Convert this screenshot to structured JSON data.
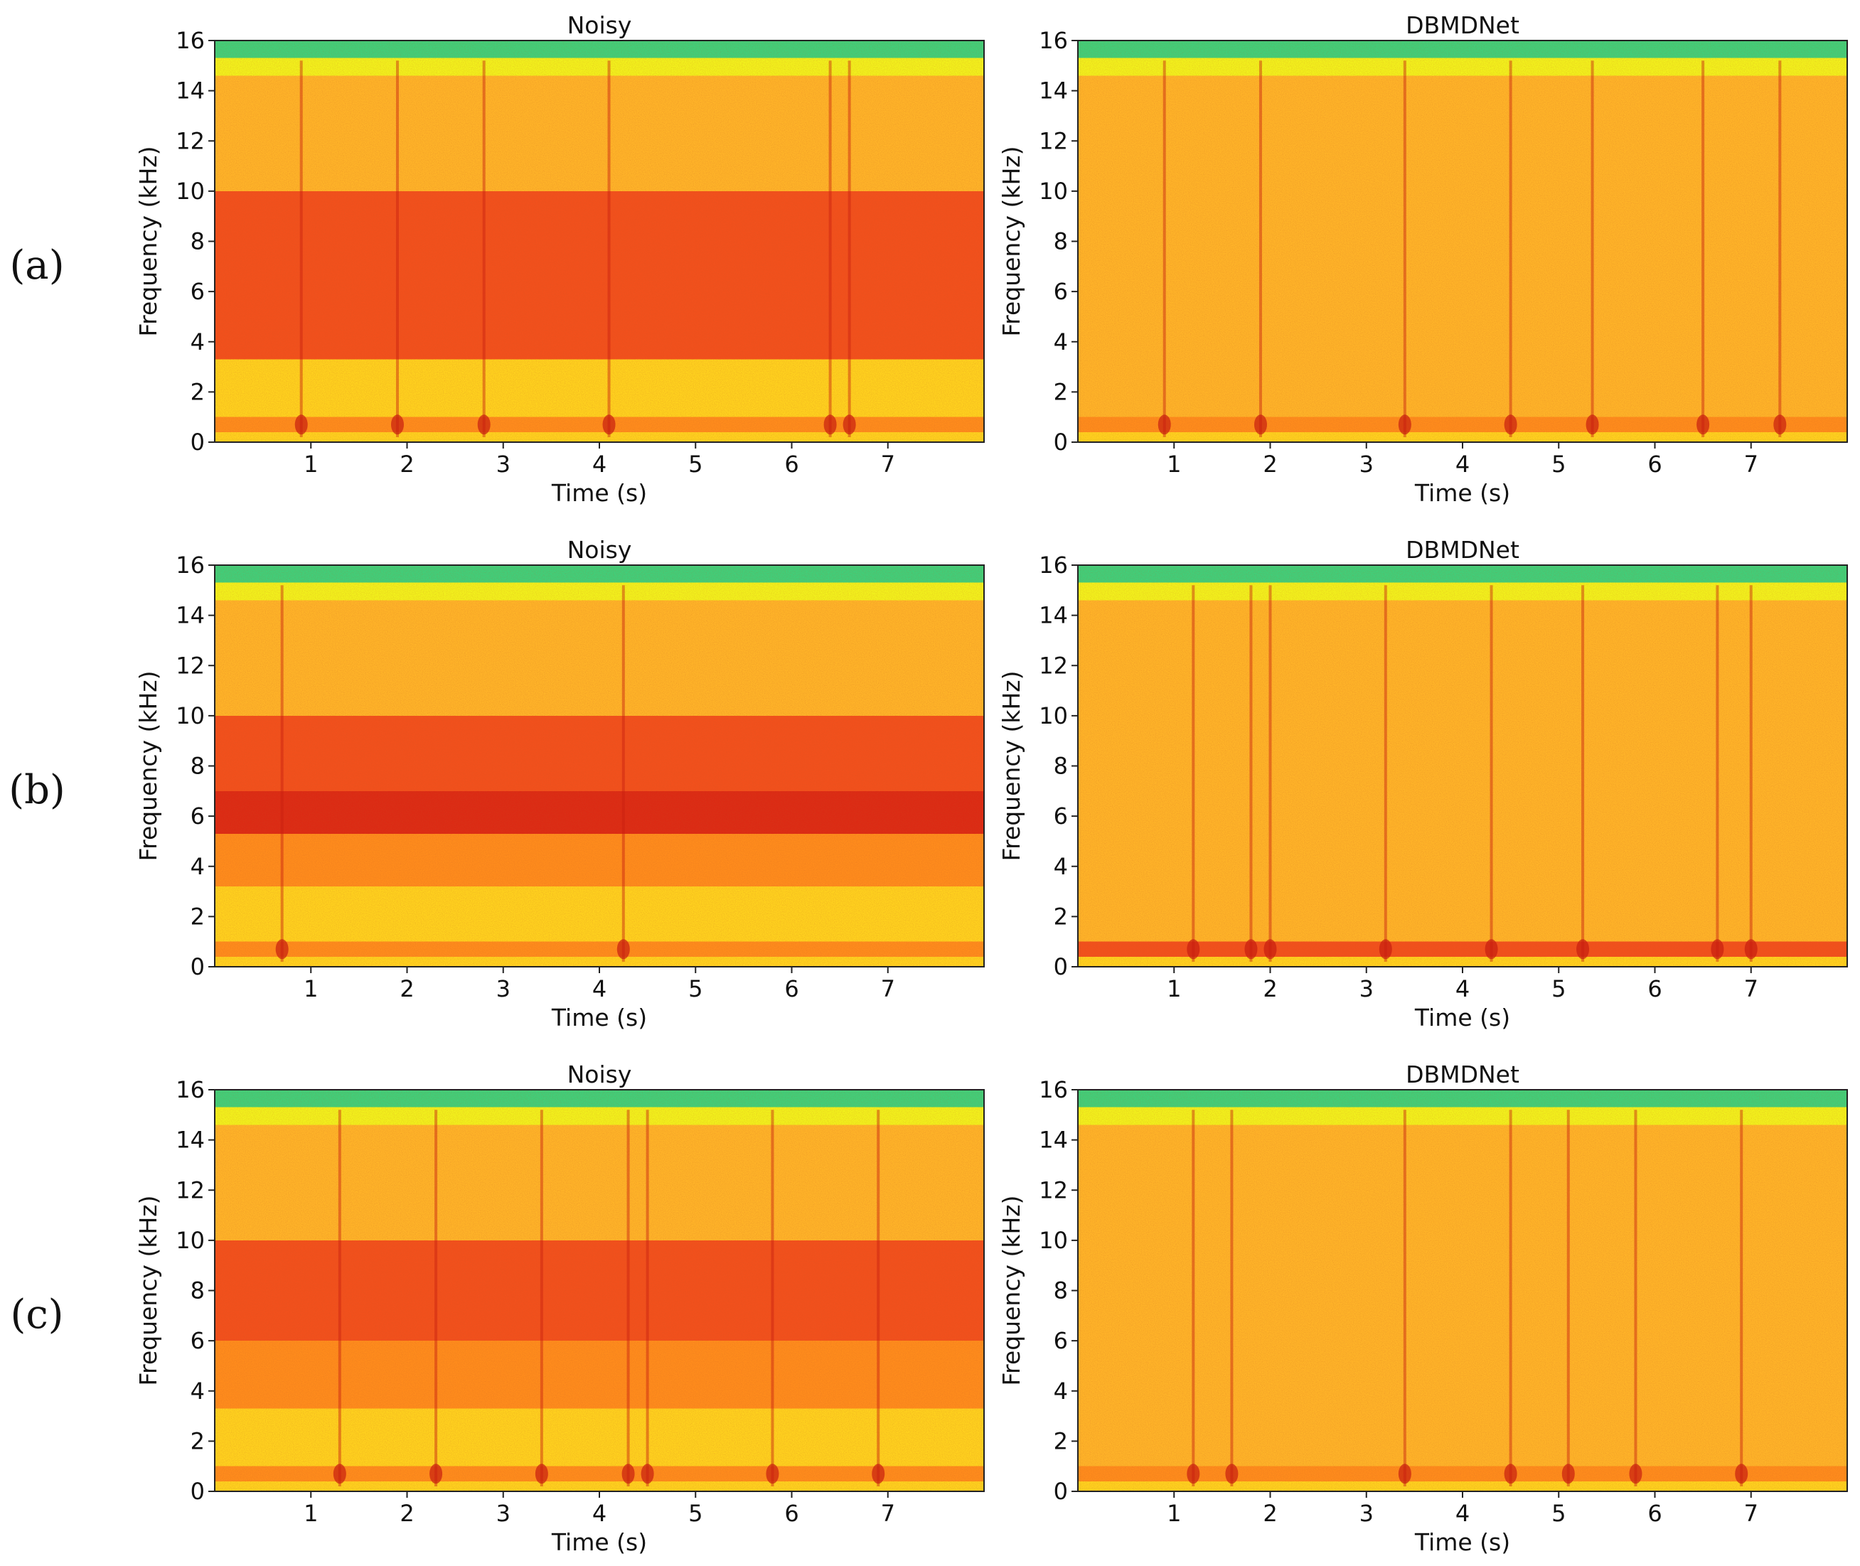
{
  "colors": {
    "colormap": [
      "#1fbfa0",
      "#3fd07a",
      "#b8e830",
      "#f2f21c",
      "#ffd21e",
      "#ffb428",
      "#ff8c1c",
      "#f2501c",
      "#dc2a14"
    ],
    "axis": "#222222"
  },
  "chart_data": [
    {
      "type": "heatmap",
      "row": "(a)",
      "title": "Noisy",
      "xlabel": "Time (s)",
      "ylabel": "Frequency (kHz)",
      "xlim": [
        0,
        8
      ],
      "ylim": [
        0,
        16
      ],
      "xticks": [
        1,
        2,
        3,
        4,
        5,
        6,
        7
      ],
      "yticks": [
        0,
        2,
        4,
        6,
        8,
        10,
        12,
        14,
        16
      ],
      "energy_bands": [
        {
          "from_khz": 0,
          "to_khz": 0.4,
          "level": 0.45
        },
        {
          "from_khz": 0.4,
          "to_khz": 1.0,
          "level": 0.8
        },
        {
          "from_khz": 1.0,
          "to_khz": 3.3,
          "level": 0.45
        },
        {
          "from_khz": 3.3,
          "to_khz": 10.0,
          "level": 0.9
        },
        {
          "from_khz": 10.0,
          "to_khz": 14.6,
          "level": 0.6
        },
        {
          "from_khz": 14.6,
          "to_khz": 15.3,
          "level": 0.38
        },
        {
          "from_khz": 15.3,
          "to_khz": 16.0,
          "level": 0.12
        }
      ],
      "transients_s": [
        0.9,
        1.9,
        2.8,
        4.1,
        6.4,
        6.6
      ]
    },
    {
      "type": "heatmap",
      "row": "(a)",
      "title": "DBMDNet",
      "xlabel": "Time (s)",
      "ylabel": "Frequency (kHz)",
      "xlim": [
        0,
        8
      ],
      "ylim": [
        0,
        16
      ],
      "xticks": [
        1,
        2,
        3,
        4,
        5,
        6,
        7
      ],
      "yticks": [
        0,
        2,
        4,
        6,
        8,
        10,
        12,
        14,
        16
      ],
      "energy_bands": [
        {
          "from_khz": 0,
          "to_khz": 0.4,
          "level": 0.45
        },
        {
          "from_khz": 0.4,
          "to_khz": 1.0,
          "level": 0.8
        },
        {
          "from_khz": 1.0,
          "to_khz": 14.6,
          "level": 0.6
        },
        {
          "from_khz": 14.6,
          "to_khz": 15.3,
          "level": 0.38
        },
        {
          "from_khz": 15.3,
          "to_khz": 16.0,
          "level": 0.12
        }
      ],
      "transients_s": [
        0.9,
        1.9,
        3.4,
        4.5,
        5.35,
        6.5,
        7.3
      ]
    },
    {
      "type": "heatmap",
      "row": "(b)",
      "title": "Noisy",
      "xlabel": "Time (s)",
      "ylabel": "Frequency (kHz)",
      "xlim": [
        0,
        8
      ],
      "ylim": [
        0,
        16
      ],
      "xticks": [
        1,
        2,
        3,
        4,
        5,
        6,
        7
      ],
      "yticks": [
        0,
        2,
        4,
        6,
        8,
        10,
        12,
        14,
        16
      ],
      "energy_bands": [
        {
          "from_khz": 0,
          "to_khz": 0.4,
          "level": 0.45
        },
        {
          "from_khz": 0.4,
          "to_khz": 1.0,
          "level": 0.8
        },
        {
          "from_khz": 1.0,
          "to_khz": 3.2,
          "level": 0.45
        },
        {
          "from_khz": 3.2,
          "to_khz": 5.3,
          "level": 0.78
        },
        {
          "from_khz": 5.3,
          "to_khz": 7.0,
          "level": 0.95
        },
        {
          "from_khz": 7.0,
          "to_khz": 8.6,
          "level": 0.82
        },
        {
          "from_khz": 8.6,
          "to_khz": 10.0,
          "level": 0.93
        },
        {
          "from_khz": 10.0,
          "to_khz": 14.6,
          "level": 0.66
        },
        {
          "from_khz": 14.6,
          "to_khz": 15.3,
          "level": 0.38
        },
        {
          "from_khz": 15.3,
          "to_khz": 16.0,
          "level": 0.12
        }
      ],
      "transients_s": [
        0.7,
        4.25
      ]
    },
    {
      "type": "heatmap",
      "row": "(b)",
      "title": "DBMDNet",
      "xlabel": "Time (s)",
      "ylabel": "Frequency (kHz)",
      "xlim": [
        0,
        8
      ],
      "ylim": [
        0,
        16
      ],
      "xticks": [
        1,
        2,
        3,
        4,
        5,
        6,
        7
      ],
      "yticks": [
        0,
        2,
        4,
        6,
        8,
        10,
        12,
        14,
        16
      ],
      "energy_bands": [
        {
          "from_khz": 0,
          "to_khz": 0.4,
          "level": 0.45
        },
        {
          "from_khz": 0.4,
          "to_khz": 1.0,
          "level": 0.85
        },
        {
          "from_khz": 1.0,
          "to_khz": 14.6,
          "level": 0.62
        },
        {
          "from_khz": 14.6,
          "to_khz": 15.3,
          "level": 0.38
        },
        {
          "from_khz": 15.3,
          "to_khz": 16.0,
          "level": 0.12
        }
      ],
      "transients_s": [
        1.2,
        1.8,
        2.0,
        3.2,
        4.3,
        5.25,
        6.65,
        7.0
      ]
    },
    {
      "type": "heatmap",
      "row": "(c)",
      "title": "Noisy",
      "xlabel": "Time (s)",
      "ylabel": "Frequency (kHz)",
      "xlim": [
        0,
        8
      ],
      "ylim": [
        0,
        16
      ],
      "xticks": [
        1,
        2,
        3,
        4,
        5,
        6,
        7
      ],
      "yticks": [
        0,
        2,
        4,
        6,
        8,
        10,
        12,
        14,
        16
      ],
      "energy_bands": [
        {
          "from_khz": 0,
          "to_khz": 0.4,
          "level": 0.45
        },
        {
          "from_khz": 0.4,
          "to_khz": 1.0,
          "level": 0.7
        },
        {
          "from_khz": 1.0,
          "to_khz": 3.3,
          "level": 0.5
        },
        {
          "from_khz": 3.3,
          "to_khz": 6.0,
          "level": 0.72
        },
        {
          "from_khz": 6.0,
          "to_khz": 10.0,
          "level": 0.9
        },
        {
          "from_khz": 10.0,
          "to_khz": 14.6,
          "level": 0.6
        },
        {
          "from_khz": 14.6,
          "to_khz": 15.3,
          "level": 0.38
        },
        {
          "from_khz": 15.3,
          "to_khz": 16.0,
          "level": 0.12
        }
      ],
      "transients_s": [
        1.3,
        2.3,
        3.4,
        4.3,
        4.5,
        5.8,
        6.9
      ]
    },
    {
      "type": "heatmap",
      "row": "(c)",
      "title": "DBMDNet",
      "xlabel": "Time (s)",
      "ylabel": "Frequency (kHz)",
      "xlim": [
        0,
        8
      ],
      "ylim": [
        0,
        16
      ],
      "xticks": [
        1,
        2,
        3,
        4,
        5,
        6,
        7
      ],
      "yticks": [
        0,
        2,
        4,
        6,
        8,
        10,
        12,
        14,
        16
      ],
      "energy_bands": [
        {
          "from_khz": 0,
          "to_khz": 0.4,
          "level": 0.45
        },
        {
          "from_khz": 0.4,
          "to_khz": 1.0,
          "level": 0.72
        },
        {
          "from_khz": 1.0,
          "to_khz": 14.6,
          "level": 0.58
        },
        {
          "from_khz": 14.6,
          "to_khz": 15.3,
          "level": 0.38
        },
        {
          "from_khz": 15.3,
          "to_khz": 16.0,
          "level": 0.12
        }
      ],
      "transients_s": [
        1.2,
        1.6,
        3.4,
        4.5,
        5.1,
        5.8,
        6.9
      ]
    }
  ]
}
